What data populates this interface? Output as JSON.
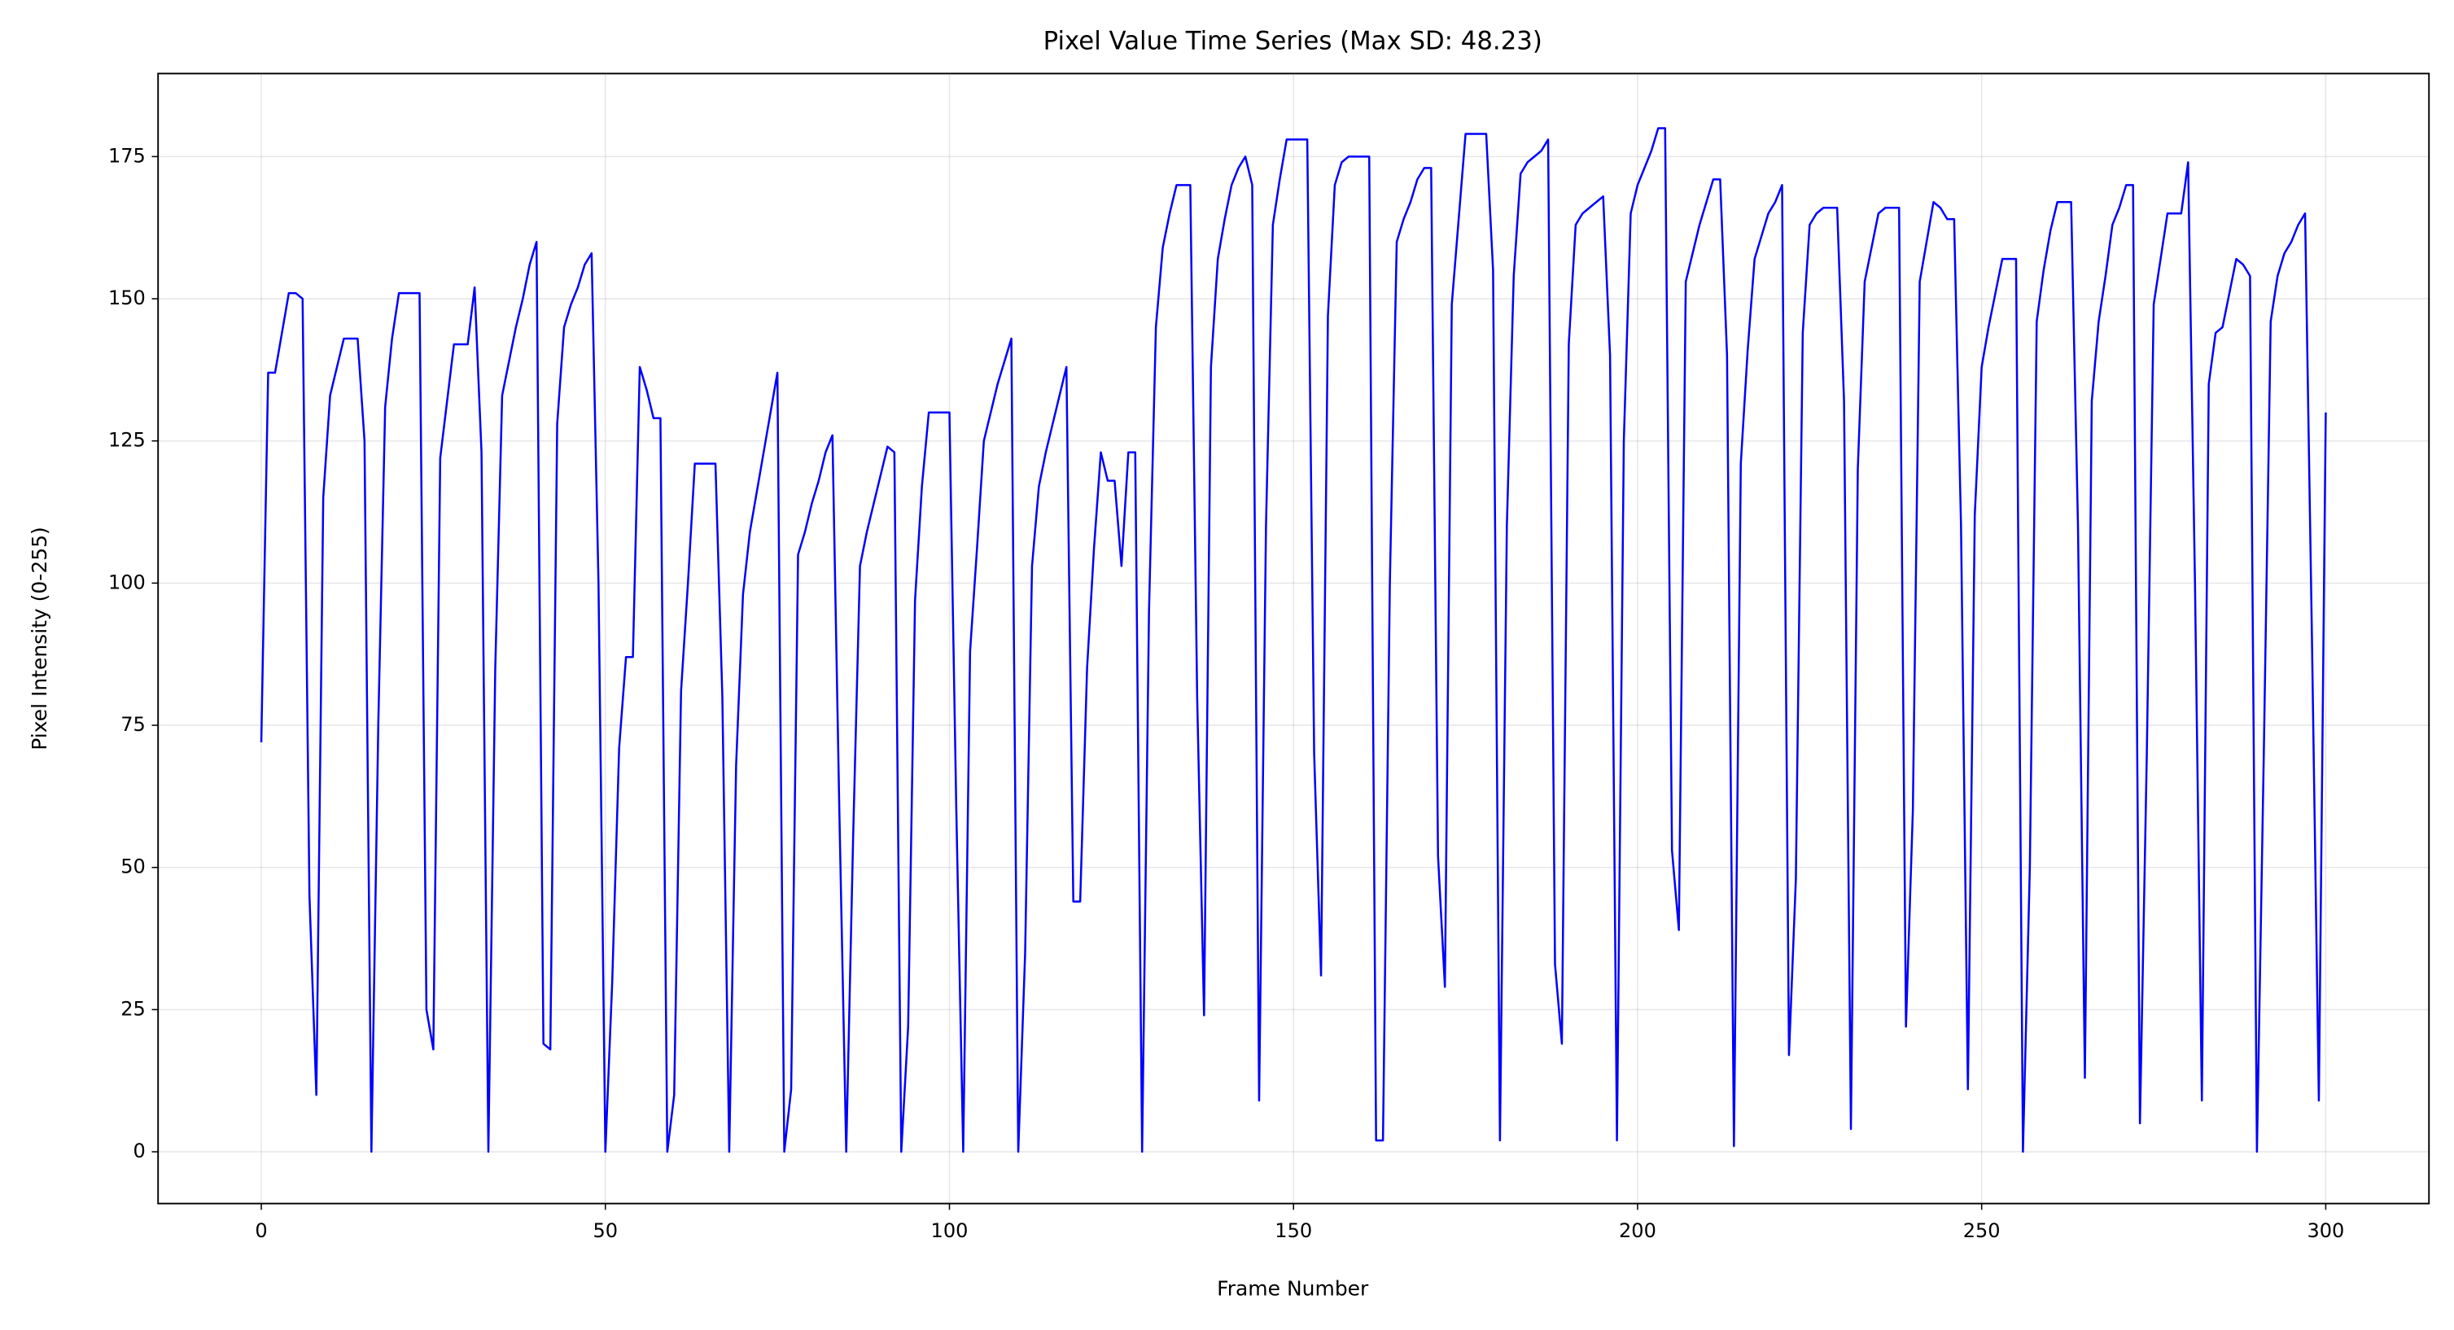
{
  "chart_data": {
    "type": "line",
    "title": "Pixel Value Time Series (Max SD: 48.23)",
    "x_label": "Frame Number",
    "y_label": "Pixel Intensity (0-255)",
    "color": "#0000ff",
    "grid": true,
    "x": [
      0,
      1,
      2,
      3,
      4,
      5,
      6,
      7,
      8,
      9,
      10,
      11,
      12,
      13,
      14,
      15,
      16,
      17,
      18,
      19,
      20,
      21,
      22,
      23,
      24,
      25,
      26,
      27,
      28,
      29,
      30,
      31,
      32,
      33,
      34,
      35,
      36,
      37,
      38,
      39,
      40,
      41,
      42,
      43,
      44,
      45,
      46,
      47,
      48,
      49,
      50,
      51,
      52,
      53,
      54,
      55,
      56,
      57,
      58,
      59,
      60,
      61,
      62,
      63,
      64,
      65,
      66,
      67,
      68,
      69,
      70,
      71,
      72,
      73,
      74,
      75,
      76,
      77,
      78,
      79,
      80,
      81,
      82,
      83,
      84,
      85,
      86,
      87,
      88,
      89,
      90,
      91,
      92,
      93,
      94,
      95,
      96,
      97,
      98,
      99,
      100,
      101,
      102,
      103,
      104,
      105,
      106,
      107,
      108,
      109,
      110,
      111,
      112,
      113,
      114,
      115,
      116,
      117,
      118,
      119,
      120,
      121,
      122,
      123,
      124,
      125,
      126,
      127,
      128,
      129,
      130,
      131,
      132,
      133,
      134,
      135,
      136,
      137,
      138,
      139,
      140,
      141,
      142,
      143,
      144,
      145,
      146,
      147,
      148,
      149,
      150,
      151,
      152,
      153,
      154,
      155,
      156,
      157,
      158,
      159,
      160,
      161,
      162,
      163,
      164,
      165,
      166,
      167,
      168,
      169,
      170,
      171,
      172,
      173,
      174,
      175,
      176,
      177,
      178,
      179,
      180,
      181,
      182,
      183,
      184,
      185,
      186,
      187,
      188,
      189,
      190,
      191,
      192,
      193,
      194,
      195,
      196,
      197,
      198,
      199,
      200,
      201,
      202,
      203,
      204,
      205,
      206,
      207,
      208,
      209,
      210,
      211,
      212,
      213,
      214,
      215,
      216,
      217,
      218,
      219,
      220,
      221,
      222,
      223,
      224,
      225,
      226,
      227,
      228,
      229,
      230,
      231,
      232,
      233,
      234,
      235,
      236,
      237,
      238,
      239,
      240,
      241,
      242,
      243,
      244,
      245,
      246,
      247,
      248,
      249,
      250,
      251,
      252,
      253,
      254,
      255,
      256,
      257,
      258,
      259,
      260,
      261,
      262,
      263,
      264,
      265,
      266,
      267,
      268,
      269,
      270,
      271,
      272,
      273,
      274,
      275,
      276,
      277,
      278,
      279,
      280,
      281,
      282,
      283,
      284,
      285,
      286,
      287,
      288,
      289,
      290,
      291,
      292,
      293,
      294,
      295,
      296,
      297,
      298,
      299,
      300
    ],
    "values": [
      72,
      137,
      137,
      144,
      151,
      151,
      150,
      45,
      10,
      115,
      133,
      138,
      143,
      143,
      143,
      125,
      0,
      75,
      131,
      143,
      151,
      151,
      151,
      151,
      25,
      18,
      122,
      132,
      142,
      142,
      142,
      152,
      123,
      0,
      85,
      133,
      139,
      145,
      150,
      156,
      160,
      19,
      18,
      128,
      145,
      149,
      152,
      156,
      158,
      100,
      0,
      30,
      71,
      87,
      87,
      138,
      134,
      129,
      129,
      0,
      10,
      81,
      100,
      121,
      121,
      121,
      121,
      80,
      0,
      68,
      98,
      109,
      116,
      123,
      130,
      137,
      0,
      11,
      105,
      109,
      114,
      118,
      123,
      126,
      60,
      0,
      55,
      103,
      109,
      114,
      119,
      124,
      123,
      0,
      22,
      97,
      117,
      130,
      130,
      130,
      130,
      60,
      0,
      88,
      106,
      125,
      130,
      135,
      139,
      143,
      0,
      35,
      103,
      117,
      123,
      128,
      133,
      138,
      44,
      44,
      85,
      106,
      123,
      118,
      118,
      103,
      123,
      123,
      0,
      95,
      145,
      159,
      165,
      170,
      170,
      170,
      80,
      24,
      138,
      157,
      164,
      170,
      173,
      175,
      170,
      9,
      110,
      163,
      171,
      178,
      178,
      178,
      178,
      70,
      31,
      147,
      170,
      174,
      175,
      175,
      175,
      175,
      2,
      2,
      100,
      160,
      164,
      167,
      171,
      173,
      173,
      52,
      29,
      149,
      164,
      179,
      179,
      179,
      179,
      155,
      2,
      110,
      154,
      172,
      174,
      175,
      176,
      178,
      33,
      19,
      142,
      163,
      165,
      166,
      167,
      168,
      140,
      2,
      125,
      165,
      170,
      173,
      176,
      180,
      180,
      53,
      39,
      153,
      158,
      163,
      167,
      171,
      171,
      140,
      1,
      121,
      141,
      157,
      161,
      165,
      167,
      170,
      17,
      48,
      144,
      163,
      165,
      166,
      166,
      166,
      132,
      4,
      120,
      153,
      159,
      165,
      166,
      166,
      166,
      22,
      60,
      153,
      160,
      167,
      166,
      164,
      164,
      110,
      11,
      112,
      138,
      145,
      151,
      157,
      157,
      157,
      0,
      50,
      146,
      155,
      162,
      167,
      167,
      167,
      110,
      13,
      132,
      146,
      154,
      163,
      166,
      170,
      170,
      5,
      70,
      149,
      157,
      165,
      165,
      165,
      174,
      100,
      9,
      135,
      144,
      145,
      151,
      157,
      156,
      154,
      0,
      70,
      146,
      154,
      158,
      160,
      163,
      165,
      90,
      9,
      130
    ],
    "xlim": [
      -15,
      315
    ],
    "xticks": [
      0,
      50,
      100,
      150,
      200,
      250,
      300
    ],
    "ylim": [
      -9.1,
      189.6
    ],
    "yticks": [
      0,
      25,
      50,
      75,
      100,
      125,
      150,
      175
    ]
  }
}
